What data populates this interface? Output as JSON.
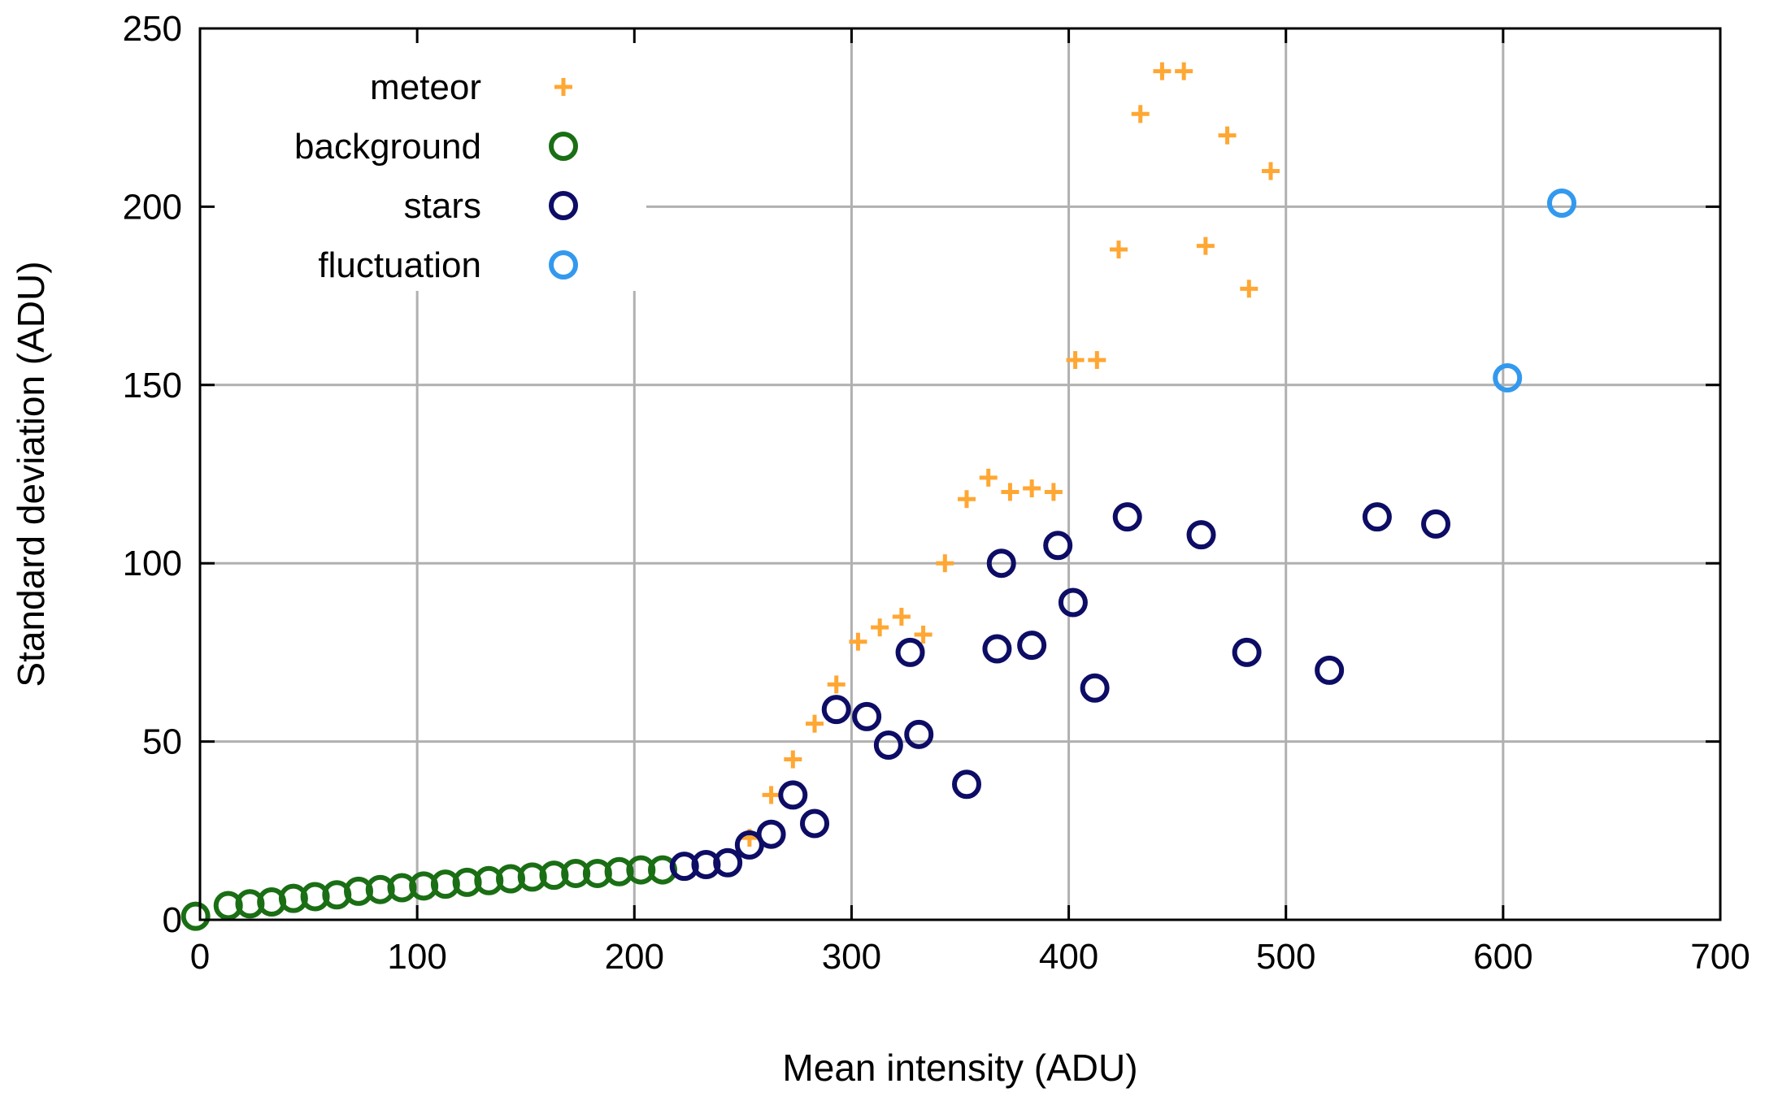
{
  "chart_data": {
    "type": "scatter",
    "title": "",
    "xlabel": "Mean intensity (ADU)",
    "ylabel": "Standard deviation (ADU)",
    "xlim": [
      0,
      700
    ],
    "ylim": [
      0,
      250
    ],
    "xticks": [
      0,
      100,
      200,
      300,
      400,
      500,
      600,
      700
    ],
    "yticks": [
      0,
      50,
      100,
      150,
      200,
      250
    ],
    "grid": true,
    "legend_position": "top-left",
    "series": [
      {
        "name": "meteor",
        "marker": "plus",
        "color": "#ffa733",
        "points": [
          [
            253,
            23
          ],
          [
            263,
            35
          ],
          [
            273,
            45
          ],
          [
            283,
            55
          ],
          [
            293,
            66
          ],
          [
            303,
            78
          ],
          [
            313,
            82
          ],
          [
            323,
            85
          ],
          [
            333,
            80
          ],
          [
            343,
            100
          ],
          [
            353,
            118
          ],
          [
            363,
            124
          ],
          [
            373,
            120
          ],
          [
            383,
            121
          ],
          [
            393,
            120
          ],
          [
            403,
            157
          ],
          [
            413,
            157
          ],
          [
            423,
            188
          ],
          [
            433,
            226
          ],
          [
            443,
            238
          ],
          [
            453,
            238
          ],
          [
            463,
            189
          ],
          [
            473,
            220
          ],
          [
            483,
            177
          ],
          [
            493,
            210
          ]
        ]
      },
      {
        "name": "background",
        "marker": "circle",
        "color": "#1a6e14",
        "points": [
          [
            -2,
            1
          ],
          [
            13,
            4
          ],
          [
            23,
            4.5
          ],
          [
            33,
            5
          ],
          [
            43,
            6
          ],
          [
            53,
            6.5
          ],
          [
            63,
            7
          ],
          [
            73,
            8
          ],
          [
            83,
            8.5
          ],
          [
            93,
            9
          ],
          [
            103,
            9.5
          ],
          [
            113,
            10
          ],
          [
            123,
            10.5
          ],
          [
            133,
            11
          ],
          [
            143,
            11.5
          ],
          [
            153,
            12
          ],
          [
            163,
            12.5
          ],
          [
            173,
            13
          ],
          [
            183,
            13
          ],
          [
            193,
            13.5
          ],
          [
            203,
            14
          ],
          [
            213,
            14
          ]
        ]
      },
      {
        "name": "stars",
        "marker": "circle",
        "color": "#0d0d66",
        "points": [
          [
            223,
            15
          ],
          [
            233,
            15.5
          ],
          [
            243,
            16
          ],
          [
            253,
            21
          ],
          [
            263,
            24
          ],
          [
            273,
            35
          ],
          [
            283,
            27
          ],
          [
            293,
            59
          ],
          [
            307,
            57
          ],
          [
            317,
            49
          ],
          [
            327,
            75
          ],
          [
            331,
            52
          ],
          [
            353,
            38
          ],
          [
            367,
            76
          ],
          [
            369,
            100
          ],
          [
            383,
            77
          ],
          [
            395,
            105
          ],
          [
            402,
            89
          ],
          [
            412,
            65
          ],
          [
            427,
            113
          ],
          [
            461,
            108
          ],
          [
            482,
            75
          ],
          [
            520,
            70
          ],
          [
            542,
            113
          ],
          [
            569,
            111
          ]
        ]
      },
      {
        "name": "fluctuation",
        "marker": "circle",
        "color": "#3399ee",
        "points": [
          [
            602,
            152
          ],
          [
            627,
            201
          ]
        ]
      }
    ]
  }
}
